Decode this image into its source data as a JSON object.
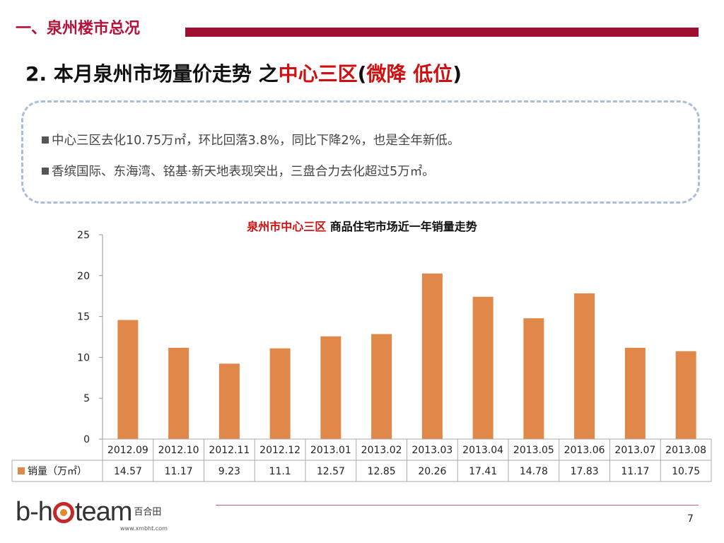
{
  "section_title": "一、泉州楼市总况",
  "main_title": {
    "prefix": "2. 本月泉州市场量价走势 之",
    "highlight": "中心三区",
    "paren_open": "(",
    "paren_highlight": "微降 低位",
    "paren_close": ")"
  },
  "summary": {
    "bullet1": "中心三区去化10.75万㎡，环比回落3.8%，同比下降2%，也是全年新低。",
    "bullet2": "香缤国际、东海湾、铭基·新天地表现突出，三盘合力去化超过5万㎡。"
  },
  "chart_title": {
    "highlight": "泉州市中心三区",
    "rest": " 商品住宅市场近一年销量走势"
  },
  "chart_data": {
    "type": "bar",
    "title": "泉州市中心三区 商品住宅市场近一年销量走势",
    "categories": [
      "2012.09",
      "2012.10",
      "2012.11",
      "2012.12",
      "2013.01",
      "2013.02",
      "2013.03",
      "2013.04",
      "2013.05",
      "2013.06",
      "2013.07",
      "2013.08"
    ],
    "series": [
      {
        "name": "销量（万㎡）",
        "values": [
          14.57,
          11.17,
          9.23,
          11.1,
          12.57,
          12.85,
          20.26,
          17.41,
          14.78,
          17.83,
          11.17,
          10.75
        ],
        "color": "#e0874a"
      }
    ],
    "ylim": [
      0,
      25
    ],
    "yticks": [
      0,
      5,
      10,
      15,
      20,
      25
    ],
    "legend": "data-table",
    "grid": false,
    "value_labels": [
      "14.57",
      "11.17",
      "9.23",
      "11.1",
      "12.57",
      "12.85",
      "20.26",
      "17.41",
      "14.78",
      "17.83",
      "11.17",
      "10.75"
    ]
  },
  "footer": {
    "logo_left": "b-h",
    "logo_right": "team",
    "logo_cn": "百合田",
    "logo_url": "www.xmbht.com",
    "page_number": "7"
  },
  "colors": {
    "brand_red": "#9e0f31",
    "title_red": "#d01010",
    "bar": "#e0874a",
    "dash_border": "#a9bfd8"
  }
}
